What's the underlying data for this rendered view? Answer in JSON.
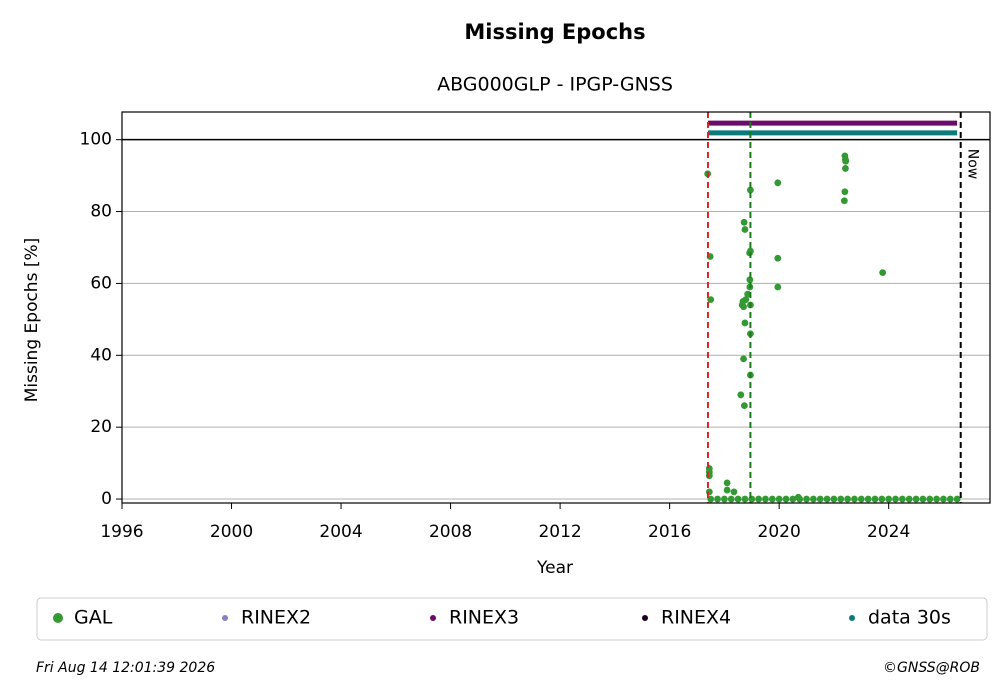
{
  "chart_data": {
    "type": "scatter",
    "title": "Missing Epochs",
    "subtitle": "ABG000GLP - IPGP-GNSS",
    "x_label": "Year",
    "y_label": "Missing Epochs [%]",
    "xlim": [
      1996,
      2027.7
    ],
    "ylim": [
      -1.1,
      107.7
    ],
    "xticks": [
      1996,
      2000,
      2004,
      2008,
      2012,
      2016,
      2020,
      2024
    ],
    "yticks": [
      0,
      20,
      40,
      60,
      80,
      100
    ],
    "grid": true,
    "hline": 100,
    "vlines": [
      {
        "x": 2017.4,
        "color": "#d62728"
      },
      {
        "x": 2018.95,
        "color": "#1a7a1a"
      },
      {
        "x": 2026.63,
        "color": "#000000",
        "label": "Now"
      }
    ],
    "series": [
      {
        "name": "GAL",
        "color": "#339933",
        "kind": "scatter",
        "x": [
          2017.39,
          2017.45,
          2017.45,
          2017.45,
          2017.48,
          2017.5,
          2017.45,
          2018.1,
          2018.1,
          2018.35,
          2018.6,
          2018.65,
          2018.68,
          2018.7,
          2018.72,
          2018.75,
          2018.78,
          2018.75,
          2018.73,
          2018.7,
          2018.85,
          2018.92,
          2018.93,
          2018.93,
          2018.95,
          2018.95,
          2018.95,
          2018.95,
          2018.95,
          2019.95,
          2019.95,
          2019.95,
          2022.4,
          2022.42,
          2022.43,
          2022.42,
          2022.4,
          2022.38,
          2023.78,
          2020.7,
          2017.5,
          2017.75,
          2018.0,
          2018.25,
          2018.5,
          2018.75,
          2019.0,
          2019.25,
          2019.5,
          2019.75,
          2020.0,
          2020.25,
          2020.5,
          2020.75,
          2021.0,
          2021.25,
          2021.5,
          2021.75,
          2022.0,
          2022.25,
          2022.5,
          2022.75,
          2023.0,
          2023.25,
          2023.5,
          2023.75,
          2024.0,
          2024.25,
          2024.5,
          2024.75,
          2025.0,
          2025.25,
          2025.5,
          2025.75,
          2026.0,
          2026.25,
          2026.5
        ],
        "values": [
          90.5,
          8.5,
          7.5,
          6.5,
          67.5,
          55.5,
          2,
          4.5,
          2.5,
          2,
          29,
          54,
          55,
          39,
          77,
          75,
          55.5,
          49,
          26,
          53.5,
          57,
          68.5,
          61,
          59,
          69,
          86,
          54,
          46,
          34.5,
          88,
          67,
          59,
          95.5,
          94.5,
          94,
          92,
          85.5,
          83,
          63,
          0.5,
          0,
          0,
          0,
          0,
          0,
          0,
          0,
          0,
          0,
          0,
          0,
          0,
          0,
          0,
          0,
          0,
          0,
          0,
          0,
          0,
          0,
          0,
          0,
          0,
          0,
          0,
          0,
          0,
          0,
          0,
          0,
          0,
          0,
          0,
          0,
          0,
          0
        ]
      },
      {
        "name": "RINEX2",
        "color": "#8a7fbf",
        "kind": "line",
        "x": [],
        "values": []
      },
      {
        "name": "RINEX3",
        "color": "#6a0a6a",
        "kind": "line",
        "x": [
          2017.4,
          2026.5
        ],
        "values": [
          104.6,
          104.6
        ]
      },
      {
        "name": "RINEX4",
        "color": "#1a0020",
        "kind": "line",
        "x": [],
        "values": []
      },
      {
        "name": "data 30s",
        "color": "#0a7a7a",
        "kind": "line",
        "x": [
          2017.4,
          2026.5
        ],
        "values": [
          101.9,
          101.9
        ]
      }
    ],
    "footer_left": "Fri Aug 14 12:01:39 2026",
    "footer_right": "©GNSS@ROB"
  }
}
